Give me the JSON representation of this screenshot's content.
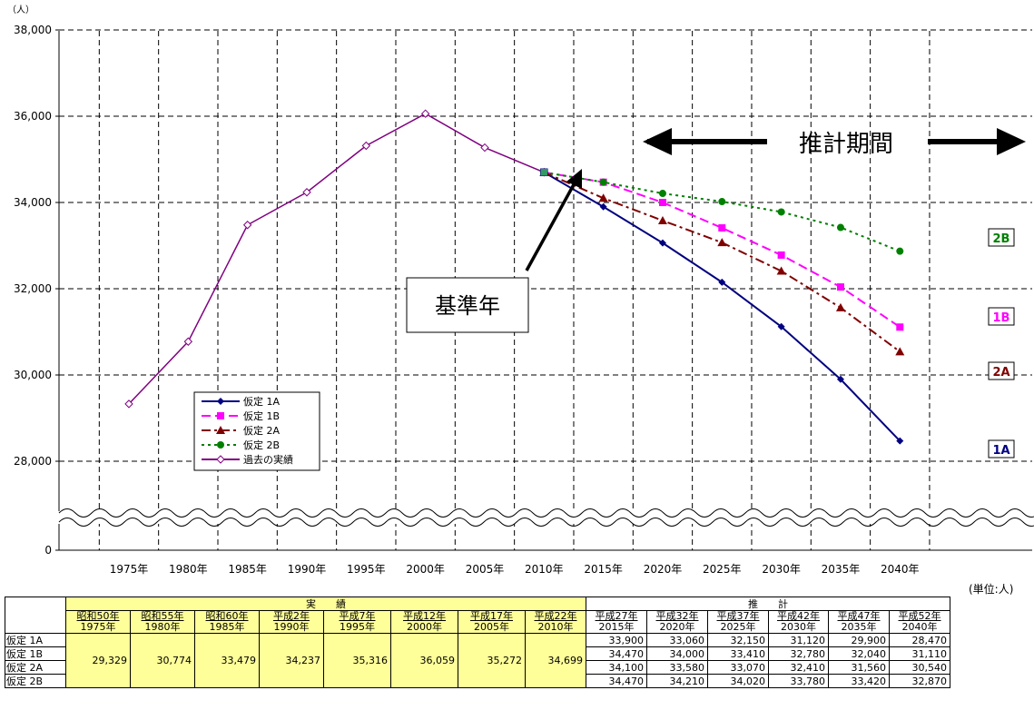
{
  "chart_data": {
    "type": "line",
    "y_unit": "（人）",
    "y_ticks": [
      {
        "value": 0,
        "label": "0"
      },
      {
        "value": 28000,
        "label": "28,000"
      },
      {
        "value": 30000,
        "label": "30,000"
      },
      {
        "value": 32000,
        "label": "32,000"
      },
      {
        "value": 34000,
        "label": "34,000"
      },
      {
        "value": 36000,
        "label": "36,000"
      },
      {
        "value": 38000,
        "label": "38,000"
      }
    ],
    "y_axis_break": true,
    "x": [
      "1975年",
      "1980年",
      "1985年",
      "1990年",
      "1995年",
      "2000年",
      "2005年",
      "2010年",
      "2015年",
      "2020年",
      "2025年",
      "2030年",
      "2035年",
      "2040年"
    ],
    "grid": true,
    "series": [
      {
        "name": "仮定 1A",
        "color": "#000080",
        "marker": "diamond",
        "dash": "solid",
        "values": [
          null,
          null,
          null,
          null,
          null,
          null,
          null,
          34699,
          33900,
          33060,
          32150,
          31120,
          29900,
          28470
        ]
      },
      {
        "name": "仮定 1B",
        "color": "#ff00ff",
        "marker": "square",
        "dash": "long-dash",
        "values": [
          null,
          null,
          null,
          null,
          null,
          null,
          null,
          34699,
          34470,
          34000,
          33410,
          32780,
          32040,
          31110
        ]
      },
      {
        "name": "仮定 2A",
        "color": "#800000",
        "marker": "triangle",
        "dash": "dash-dot",
        "values": [
          null,
          null,
          null,
          null,
          null,
          null,
          null,
          34699,
          34100,
          33580,
          33070,
          32410,
          31560,
          30540
        ]
      },
      {
        "name": "仮定 2B",
        "color": "#008000",
        "marker": "circle",
        "dash": "dotted",
        "values": [
          null,
          null,
          null,
          null,
          null,
          null,
          null,
          34699,
          34470,
          34210,
          34020,
          33780,
          33420,
          32870
        ]
      },
      {
        "name": "過去の実績",
        "color": "#800080",
        "marker": "hollow-diamond",
        "dash": "solid",
        "values": [
          29329,
          30774,
          33479,
          34237,
          35316,
          36059,
          35272,
          34699,
          null,
          null,
          null,
          null,
          null,
          null
        ]
      }
    ],
    "end_labels": [
      {
        "series": "仮定 1A",
        "text": "1A",
        "color": "#000080"
      },
      {
        "series": "仮定 1B",
        "text": "1B",
        "color": "#ff00ff"
      },
      {
        "series": "仮定 2A",
        "text": "2A",
        "color": "#800000"
      },
      {
        "series": "仮定 2B",
        "text": "2B",
        "color": "#008000"
      }
    ],
    "annotations": {
      "projection_period": "推計期間",
      "base_year": "基準年"
    },
    "legend_position": "lower-left"
  },
  "table": {
    "unit_note": "(単位:人)",
    "group_actual": "実　　績",
    "group_projection": "推　　計",
    "actual_years": [
      {
        "jp": "昭和50年",
        "ad": "1975年"
      },
      {
        "jp": "昭和55年",
        "ad": "1980年"
      },
      {
        "jp": "昭和60年",
        "ad": "1985年"
      },
      {
        "jp": "平成2年",
        "ad": "1990年"
      },
      {
        "jp": "平成7年",
        "ad": "1995年"
      },
      {
        "jp": "平成12年",
        "ad": "2000年"
      },
      {
        "jp": "平成17年",
        "ad": "2005年"
      },
      {
        "jp": "平成22年",
        "ad": "2010年"
      }
    ],
    "projection_years": [
      {
        "jp": "平成27年",
        "ad": "2015年"
      },
      {
        "jp": "平成32年",
        "ad": "2020年"
      },
      {
        "jp": "平成37年",
        "ad": "2025年"
      },
      {
        "jp": "平成42年",
        "ad": "2030年"
      },
      {
        "jp": "平成47年",
        "ad": "2035年"
      },
      {
        "jp": "平成52年",
        "ad": "2040年"
      }
    ],
    "actual_values": [
      "29,329",
      "30,774",
      "33,479",
      "34,237",
      "35,316",
      "36,059",
      "35,272",
      "34,699"
    ],
    "rows": [
      {
        "label": "仮定 1A",
        "values": [
          "33,900",
          "33,060",
          "32,150",
          "31,120",
          "29,900",
          "28,470"
        ]
      },
      {
        "label": "仮定 1B",
        "values": [
          "34,470",
          "34,000",
          "33,410",
          "32,780",
          "32,040",
          "31,110"
        ]
      },
      {
        "label": "仮定 2A",
        "values": [
          "34,100",
          "33,580",
          "33,070",
          "32,410",
          "31,560",
          "30,540"
        ]
      },
      {
        "label": "仮定 2B",
        "values": [
          "34,470",
          "34,210",
          "34,020",
          "33,780",
          "33,420",
          "32,870"
        ]
      }
    ]
  }
}
